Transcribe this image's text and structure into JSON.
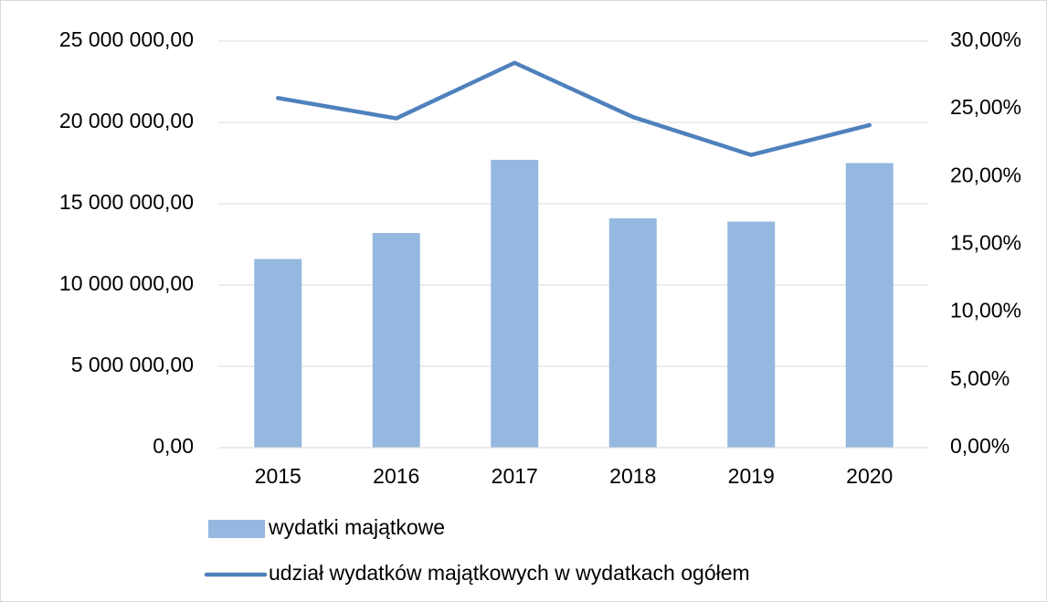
{
  "chart_data": {
    "type": "bar",
    "categories": [
      "2015",
      "2016",
      "2017",
      "2018",
      "2019",
      "2020"
    ],
    "series": [
      {
        "name": "wydatki majątkowe",
        "color": "#95b8e0",
        "values": [
          11600000,
          13200000,
          17700000,
          14100000,
          13900000,
          17500000
        ]
      },
      {
        "name": "udział wydatków majątkowych w wydatkach ogółem",
        "color": "#4f81bd",
        "type": "line",
        "axis": "y2",
        "values": [
          25.8,
          24.3,
          28.4,
          24.4,
          21.6,
          23.8
        ]
      }
    ],
    "ylim": [
      0,
      25000000
    ],
    "yticks": [
      {
        "value": 0,
        "label": "0,00"
      },
      {
        "value": 5000000,
        "label": "5 000 000,00"
      },
      {
        "value": 10000000,
        "label": "10 000 000,00"
      },
      {
        "value": 15000000,
        "label": "15 000 000,00"
      },
      {
        "value": 20000000,
        "label": "20 000 000,00"
      },
      {
        "value": 25000000,
        "label": "25 000 000,00"
      }
    ],
    "y2lim": [
      0,
      30
    ],
    "y2ticks": [
      {
        "value": 0,
        "label": "0,00%"
      },
      {
        "value": 5,
        "label": "5,00%"
      },
      {
        "value": 10,
        "label": "10,00%"
      },
      {
        "value": 15,
        "label": "15,00%"
      },
      {
        "value": 20,
        "label": "20,00%"
      },
      {
        "value": 25,
        "label": "25,00%"
      },
      {
        "value": 30,
        "label": "30,00%"
      }
    ],
    "grid": true,
    "legend": "bottom"
  }
}
